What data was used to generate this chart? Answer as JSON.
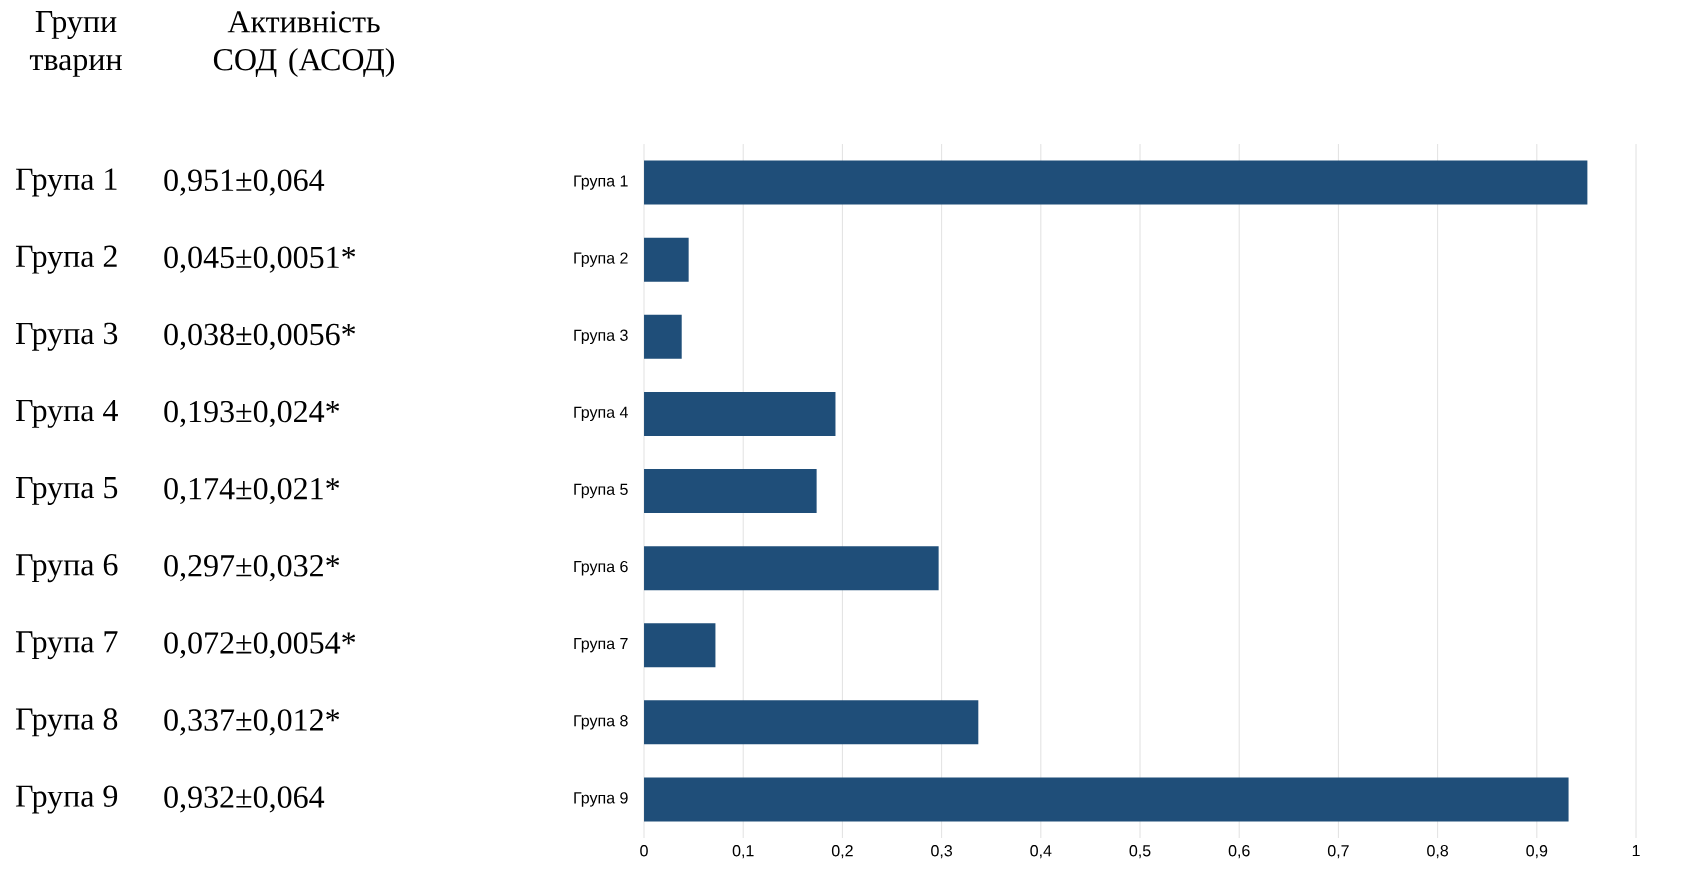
{
  "chart_data": {
    "type": "bar",
    "orientation": "horizontal",
    "categories": [
      "Група 1",
      "Група 2",
      "Група 3",
      "Група 4",
      "Група 5",
      "Група 6",
      "Група 7",
      "Група 8",
      "Група 9"
    ],
    "values": [
      0.951,
      0.045,
      0.038,
      0.193,
      0.174,
      0.297,
      0.072,
      0.337,
      0.932
    ],
    "color": "#1f4e79",
    "xlim": [
      0,
      1
    ],
    "xticks": [
      0,
      {
        "value": 0.1,
        "label": "0,1"
      },
      {
        "value": 0.2,
        "label": "0,2"
      },
      {
        "value": 0.3,
        "label": "0,3"
      },
      {
        "value": 0.4,
        "label": "0,4"
      },
      {
        "value": 0.5,
        "label": "0,5"
      },
      {
        "value": 0.6,
        "label": "0,6"
      },
      {
        "value": 0.7,
        "label": "0,7"
      },
      {
        "value": 0.8,
        "label": "0,8"
      },
      {
        "value": 0.9,
        "label": "0,9"
      },
      1
    ],
    "grid": "x",
    "annotations": [
      "Групи тварин",
      "Активність СОД (АСОД)",
      "0,951±0,064",
      "0,045±0,0051*",
      "0,038±0,0056*",
      "0,193±0,024*",
      "0,174±0,021*",
      "0,297±0,032*",
      "0,072±0,0054*",
      "0,337±0,012*",
      "0,932±0,064"
    ]
  }
}
